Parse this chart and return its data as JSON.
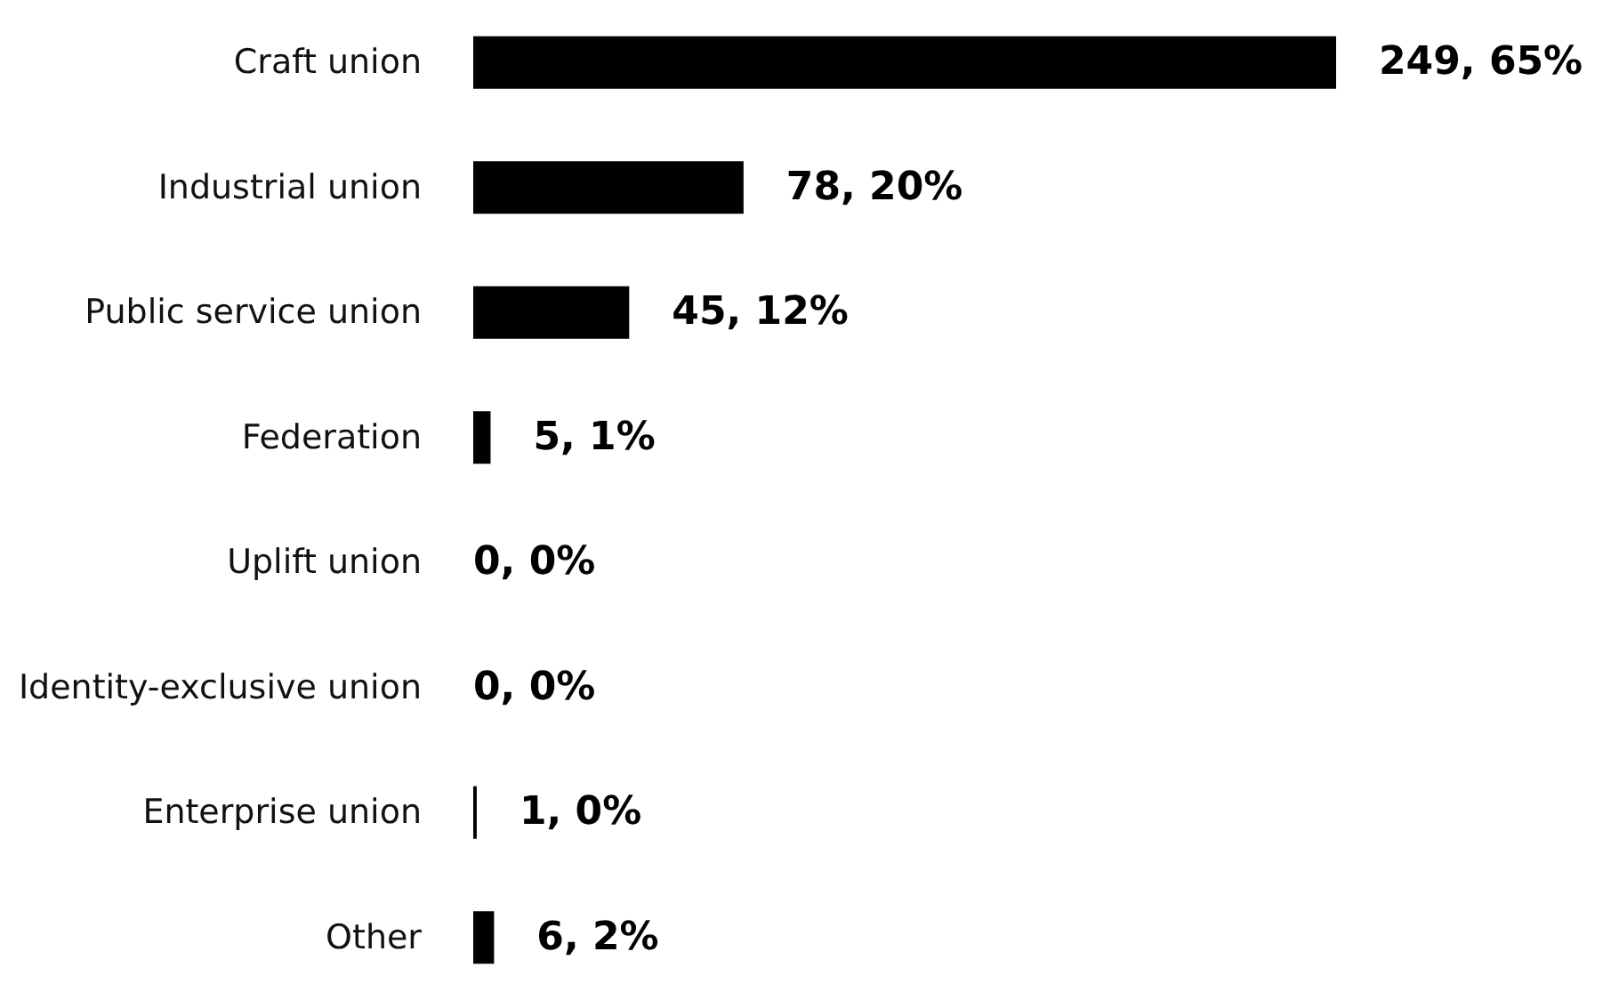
{
  "chart_data": {
    "type": "bar",
    "orientation": "horizontal",
    "categories": [
      "Craft union",
      "Industrial union",
      "Public service union",
      "Federation",
      "Uplift union",
      "Identity-exclusive union",
      "Enterprise union",
      "Other"
    ],
    "values": [
      249,
      78,
      45,
      5,
      0,
      0,
      1,
      6
    ],
    "value_labels": [
      "249, 65%",
      "78, 20%",
      "45, 12%",
      "5, 1%",
      "0, 0%",
      "0, 0%",
      "1, 0%",
      "6, 2%"
    ],
    "color": "#000000"
  }
}
